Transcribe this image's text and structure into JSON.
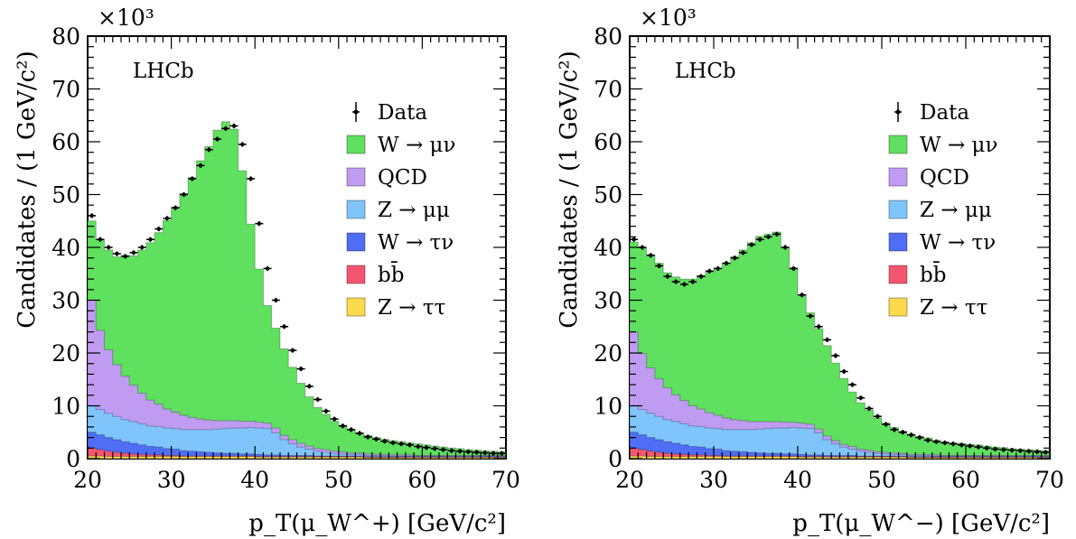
{
  "colors": {
    "W_munu": "#5fe05f",
    "QCD": "#bf9cf2",
    "Z_mumu": "#7fc4fa",
    "W_taunu": "#4f6ef5",
    "bbbar": "#f5566f",
    "Z_tautau": "#fad94c",
    "data": "#000000"
  },
  "chart_data": [
    {
      "type": "area",
      "subtype": "stacked-histogram",
      "label": "LHCb",
      "xlabel": "p_T(μ_W^+) [GeV/c²]",
      "ylabel": "Candidates / (1 GeV/c²)",
      "y_multiplier": "×10³",
      "xlim": [
        20,
        70
      ],
      "ylim": [
        0,
        80
      ],
      "xticks": [
        "20",
        "30",
        "40",
        "50",
        "60",
        "70"
      ],
      "yticks": [
        "0",
        "10",
        "20",
        "30",
        "40",
        "50",
        "60",
        "70",
        "80"
      ],
      "legend_position": "top-right",
      "bin_width": 1,
      "series": [
        {
          "name": "Z → ττ",
          "key": "Z_tautau",
          "values": [
            0.5,
            0.5,
            0.4,
            0.4,
            0.4,
            0.4,
            0.4,
            0.4,
            0.4,
            0.4,
            0.4,
            0.4,
            0.4,
            0.4,
            0.4,
            0.4,
            0.4,
            0.4,
            0.4,
            0.4,
            0.3,
            0.3,
            0.3,
            0.3,
            0.3,
            0.3,
            0.3,
            0.3,
            0.3,
            0.3,
            0.3,
            0.3,
            0.3,
            0.2,
            0.2,
            0.2,
            0.2,
            0.2,
            0.2,
            0.2,
            0.2,
            0.2,
            0.2,
            0.2,
            0.2,
            0.2,
            0.2,
            0.2,
            0.2,
            0.2
          ]
        },
        {
          "name": "bb̄",
          "key": "bbbar",
          "values": [
            1.5,
            1.2,
            1.0,
            0.8,
            0.6,
            0.5,
            0.4,
            0.3,
            0.3,
            0.2,
            0.2,
            0.1,
            0.1,
            0.1,
            0.1,
            0.1,
            0.1,
            0.1,
            0.1,
            0.1,
            0.1,
            0.1,
            0.1,
            0.1,
            0.1,
            0.1,
            0.1,
            0.1,
            0.1,
            0.1,
            0.1,
            0.1,
            0.1,
            0.1,
            0.1,
            0.1,
            0.1,
            0.1,
            0.1,
            0.1,
            0.1,
            0.1,
            0.1,
            0.1,
            0.1,
            0.1,
            0.1,
            0.1,
            0.1,
            0.1
          ]
        },
        {
          "name": "W → τν",
          "key": "W_taunu",
          "values": [
            3.0,
            2.8,
            2.6,
            2.4,
            2.2,
            2.0,
            1.8,
            1.6,
            1.5,
            1.3,
            1.2,
            1.0,
            0.9,
            0.8,
            0.7,
            0.6,
            0.5,
            0.5,
            0.4,
            0.4,
            0.4,
            0.3,
            0.3,
            0.2,
            0.2,
            0.2,
            0.2,
            0.1,
            0.1,
            0.1,
            0.1,
            0.1,
            0.1,
            0.1,
            0.1,
            0.1,
            0.1,
            0.1,
            0.1,
            0.1,
            0.1,
            0.1,
            0.1,
            0.1,
            0.1,
            0.1,
            0.1,
            0.1,
            0.1,
            0.1
          ]
        },
        {
          "name": "Z → μμ",
          "key": "Z_mumu",
          "values": [
            5.0,
            4.8,
            4.6,
            4.4,
            4.2,
            4.1,
            4.0,
            3.9,
            3.9,
            3.9,
            3.9,
            4.0,
            4.1,
            4.2,
            4.3,
            4.5,
            4.7,
            4.8,
            4.9,
            5.0,
            5.0,
            5.0,
            4.2,
            3.0,
            2.2,
            1.6,
            1.2,
            0.9,
            0.7,
            0.5,
            0.4,
            0.3,
            0.3,
            0.2,
            0.2,
            0.2,
            0.1,
            0.1,
            0.1,
            0.1,
            0.1,
            0.1,
            0.1,
            0.1,
            0.1,
            0.1,
            0.1,
            0.1,
            0.1,
            0.1
          ]
        },
        {
          "name": "QCD",
          "key": "QCD",
          "values": [
            20.0,
            15.0,
            12.0,
            9.8,
            8.2,
            6.9,
            5.8,
            4.9,
            4.2,
            3.6,
            3.1,
            2.7,
            2.3,
            2.0,
            1.8,
            1.6,
            1.5,
            1.4,
            1.3,
            1.2,
            1.1,
            1.0,
            0.9,
            0.8,
            0.8,
            0.7,
            0.6,
            0.5,
            0.5,
            0.4,
            0.4,
            0.3,
            0.3,
            0.3,
            0.2,
            0.2,
            0.2,
            0.2,
            0.2,
            0.1,
            0.1,
            0.1,
            0.1,
            0.1,
            0.1,
            0.1,
            0.1,
            0.1,
            0.1,
            0.1
          ]
        },
        {
          "name": "W → μν",
          "key": "W_munu",
          "values": [
            15.0,
            17.2,
            18.9,
            20.4,
            22.9,
            24.5,
            27.1,
            29.8,
            32.5,
            35.7,
            38.8,
            42.0,
            45.4,
            48.9,
            51.8,
            55.0,
            56.6,
            55.2,
            47.4,
            37.3,
            29.0,
            22.3,
            18.9,
            16.4,
            13.7,
            11.4,
            9.3,
            7.8,
            6.7,
            5.7,
            4.9,
            4.3,
            3.8,
            3.5,
            3.2,
            2.9,
            2.7,
            2.5,
            2.3,
            2.2,
            2.0,
            1.8,
            1.6,
            1.4,
            1.3,
            1.1,
            1.0,
            0.9,
            0.8,
            0.7
          ]
        }
      ],
      "data_series": {
        "name": "Data",
        "values": [
          46.0,
          41.5,
          40.0,
          38.8,
          38.3,
          39.0,
          40.0,
          41.5,
          43.5,
          45.5,
          47.5,
          50.0,
          53.0,
          55.5,
          58.5,
          60.5,
          62.5,
          63.0,
          59.5,
          53.0,
          44.5,
          36.0,
          30.0,
          25.0,
          20.5,
          17.0,
          13.7,
          11.2,
          9.0,
          7.5,
          6.2,
          5.5,
          4.8,
          4.1,
          3.7,
          3.3,
          3.0,
          2.8,
          2.6,
          2.3,
          2.1,
          1.9,
          1.7,
          1.5,
          1.4,
          1.3,
          1.2,
          1.1,
          1.0,
          1.0
        ]
      }
    },
    {
      "type": "area",
      "subtype": "stacked-histogram",
      "label": "LHCb",
      "xlabel": "p_T(μ_W^−) [GeV/c²]",
      "ylabel": "Candidates / (1 GeV/c²)",
      "y_multiplier": "×10³",
      "xlim": [
        20,
        70
      ],
      "ylim": [
        0,
        80
      ],
      "xticks": [
        "20",
        "30",
        "40",
        "50",
        "60",
        "70"
      ],
      "yticks": [
        "0",
        "10",
        "20",
        "30",
        "40",
        "50",
        "60",
        "70",
        "80"
      ],
      "legend_position": "top-right",
      "bin_width": 1,
      "series": [
        {
          "name": "Z → ττ",
          "key": "Z_tautau",
          "values": [
            0.5,
            0.5,
            0.4,
            0.4,
            0.4,
            0.4,
            0.4,
            0.4,
            0.4,
            0.4,
            0.4,
            0.4,
            0.4,
            0.4,
            0.4,
            0.4,
            0.4,
            0.4,
            0.4,
            0.4,
            0.3,
            0.3,
            0.3,
            0.3,
            0.3,
            0.3,
            0.3,
            0.3,
            0.3,
            0.3,
            0.3,
            0.3,
            0.3,
            0.2,
            0.2,
            0.2,
            0.2,
            0.2,
            0.2,
            0.2,
            0.2,
            0.2,
            0.2,
            0.2,
            0.2,
            0.2,
            0.2,
            0.2,
            0.2,
            0.2
          ]
        },
        {
          "name": "bb̄",
          "key": "bbbar",
          "values": [
            1.5,
            1.2,
            1.0,
            0.8,
            0.6,
            0.5,
            0.4,
            0.3,
            0.3,
            0.2,
            0.2,
            0.1,
            0.1,
            0.1,
            0.1,
            0.1,
            0.1,
            0.1,
            0.1,
            0.1,
            0.1,
            0.1,
            0.1,
            0.1,
            0.1,
            0.1,
            0.1,
            0.1,
            0.1,
            0.1,
            0.1,
            0.1,
            0.1,
            0.1,
            0.1,
            0.1,
            0.1,
            0.1,
            0.1,
            0.1,
            0.1,
            0.1,
            0.1,
            0.1,
            0.1,
            0.1,
            0.1,
            0.1,
            0.1,
            0.1
          ]
        },
        {
          "name": "W → τν",
          "key": "W_taunu",
          "values": [
            3.0,
            2.8,
            2.6,
            2.4,
            2.2,
            2.0,
            1.8,
            1.6,
            1.5,
            1.3,
            1.2,
            1.0,
            0.9,
            0.8,
            0.7,
            0.6,
            0.5,
            0.5,
            0.4,
            0.4,
            0.4,
            0.3,
            0.3,
            0.2,
            0.2,
            0.2,
            0.2,
            0.1,
            0.1,
            0.1,
            0.1,
            0.1,
            0.1,
            0.1,
            0.1,
            0.1,
            0.1,
            0.1,
            0.1,
            0.1,
            0.1,
            0.1,
            0.1,
            0.1,
            0.1,
            0.1,
            0.1,
            0.1,
            0.1,
            0.1
          ]
        },
        {
          "name": "Z → μμ",
          "key": "Z_mumu",
          "values": [
            5.0,
            4.8,
            4.6,
            4.4,
            4.2,
            4.1,
            4.0,
            3.9,
            3.9,
            3.9,
            3.9,
            4.0,
            4.1,
            4.2,
            4.3,
            4.5,
            4.7,
            4.8,
            4.9,
            5.0,
            5.0,
            5.0,
            4.2,
            3.0,
            2.2,
            1.6,
            1.2,
            0.9,
            0.7,
            0.5,
            0.4,
            0.3,
            0.3,
            0.2,
            0.2,
            0.2,
            0.1,
            0.1,
            0.1,
            0.1,
            0.1,
            0.1,
            0.1,
            0.1,
            0.1,
            0.1,
            0.1,
            0.1,
            0.1,
            0.1
          ]
        },
        {
          "name": "QCD",
          "key": "QCD",
          "values": [
            14.0,
            10.6,
            8.6,
            7.1,
            6.0,
            5.1,
            4.4,
            3.8,
            3.3,
            2.9,
            2.5,
            2.2,
            1.9,
            1.7,
            1.5,
            1.4,
            1.3,
            1.2,
            1.1,
            1.0,
            0.9,
            0.8,
            0.7,
            0.7,
            0.6,
            0.5,
            0.5,
            0.4,
            0.4,
            0.3,
            0.3,
            0.3,
            0.2,
            0.2,
            0.2,
            0.2,
            0.2,
            0.1,
            0.1,
            0.1,
            0.1,
            0.1,
            0.1,
            0.1,
            0.1,
            0.1,
            0.1,
            0.1,
            0.1,
            0.1
          ]
        },
        {
          "name": "W → μν",
          "key": "W_munu",
          "values": [
            17.0,
            20.1,
            21.4,
            21.9,
            21.8,
            22.3,
            23.0,
            24.0,
            25.3,
            26.6,
            27.9,
            29.3,
            30.8,
            32.3,
            33.9,
            35.1,
            35.5,
            35.9,
            33.1,
            29.2,
            24.3,
            21.1,
            19.0,
            17.1,
            14.7,
            12.5,
            10.3,
            8.8,
            7.6,
            6.4,
            5.5,
            4.8,
            4.2,
            3.8,
            3.4,
            3.1,
            2.8,
            2.6,
            2.4,
            2.3,
            2.1,
            2.0,
            1.8,
            1.6,
            1.5,
            1.3,
            1.2,
            1.1,
            1.0,
            0.9
          ]
        }
      ],
      "data_series": {
        "name": "Data",
        "values": [
          41.5,
          40.0,
          38.5,
          36.5,
          34.5,
          33.5,
          33.0,
          33.5,
          34.5,
          35.5,
          36.0,
          37.0,
          38.0,
          39.0,
          40.5,
          41.5,
          42.0,
          42.5,
          40.0,
          36.0,
          31.0,
          27.0,
          25.0,
          22.5,
          19.5,
          16.5,
          14.0,
          11.5,
          9.5,
          8.0,
          6.5,
          5.5,
          5.0,
          4.5,
          4.0,
          3.5,
          3.2,
          3.0,
          2.8,
          2.6,
          2.4,
          2.2,
          2.0,
          1.8,
          1.7,
          1.6,
          1.5,
          1.4,
          1.3,
          1.2
        ]
      }
    }
  ]
}
